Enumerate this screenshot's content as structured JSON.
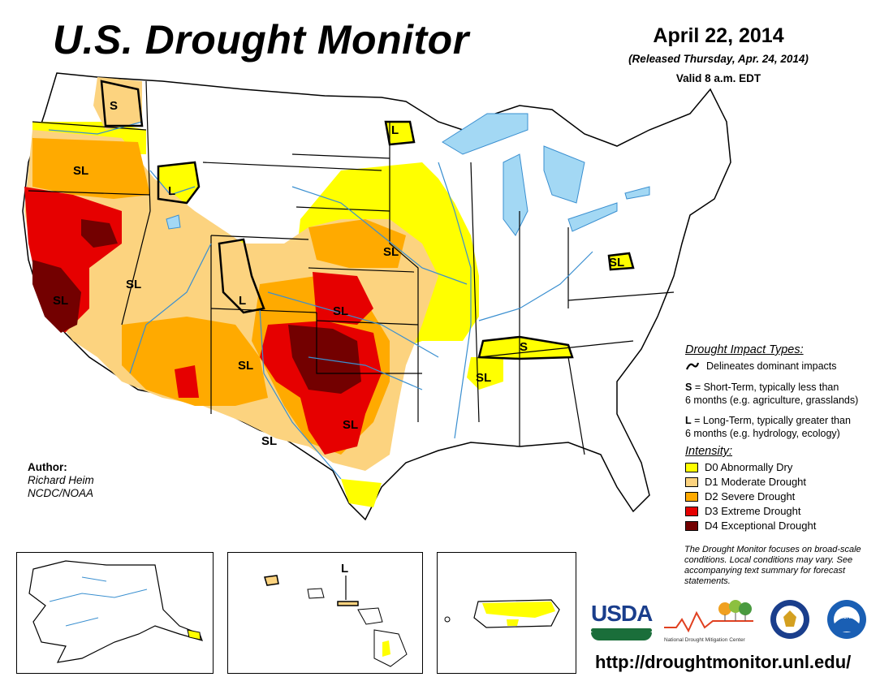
{
  "header": {
    "title": "U.S. Drought Monitor",
    "date": "April 22, 2014",
    "released": "(Released Thursday, Apr. 24, 2014)",
    "valid": "Valid 8 a.m. EDT"
  },
  "author": {
    "label": "Author:",
    "name": "Richard Heim",
    "org": "NCDC/NOAA"
  },
  "impact_types": {
    "title": "Drought Impact Types:",
    "line_label": "Delineates dominant impacts",
    "short_term": {
      "code": "S",
      "text": " = Short-Term, typically less than",
      "text2": "6 months (e.g. agriculture, grasslands)"
    },
    "long_term": {
      "code": "L",
      "text": " = Long-Term, typically greater than",
      "text2": "6 months (e.g. hydrology, ecology)"
    }
  },
  "intensity": {
    "title": "Intensity:",
    "levels": [
      {
        "label": "D0 Abnormally Dry",
        "color": "#ffff00"
      },
      {
        "label": "D1 Moderate Drought",
        "color": "#fcd37f"
      },
      {
        "label": "D2 Severe Drought",
        "color": "#ffaa00"
      },
      {
        "label": "D3 Extreme Drought",
        "color": "#e60000"
      },
      {
        "label": "D4 Exceptional Drought",
        "color": "#730000"
      }
    ]
  },
  "note": "The Drought Monitor focuses on broad-scale conditions. Local conditions may vary. See accompanying text summary for forecast statements.",
  "map_labels": {
    "s_pnw": "S",
    "sl_or": "SL",
    "l_id": "L",
    "sl_nv": "SL",
    "sl_ca": "SL",
    "l_wy": "L",
    "sl_ne": "SL",
    "sl_ks": "SL",
    "sl_nm": "SL",
    "sl_tx": "SL",
    "sl_wtx": "SL",
    "l_nd": "L",
    "s_tn": "S",
    "sl_ms": "SL",
    "sl_pa": "SL",
    "l_hi": "L"
  },
  "logos": {
    "usda": "USDA",
    "ndmc": "National Drought Mitigation Center",
    "noaa": "NOAA"
  },
  "url": "http://droughtmonitor.unl.edu/"
}
